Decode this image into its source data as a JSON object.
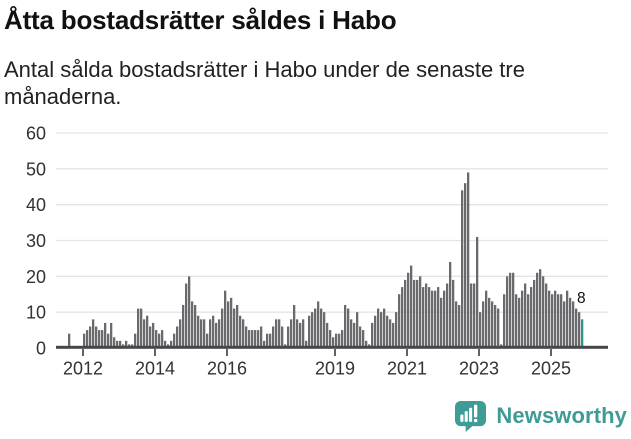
{
  "header": {
    "title": "Åtta bostadsrätter såldes i Habo",
    "subtitle": "Antal sålda bostadsrätter i Habo under de senaste tre månaderna."
  },
  "chart_data": {
    "type": "bar",
    "title": "Åtta bostadsrätter såldes i Habo",
    "subtitle": "Antal sålda bostadsrätter i Habo under de senaste tre månaderna.",
    "start_month": "2011-08",
    "end_month": "2025-11",
    "values": [
      4,
      0,
      0,
      0,
      0,
      4,
      5,
      6,
      8,
      6,
      5,
      5,
      7,
      4,
      7,
      3,
      2,
      2,
      1,
      2,
      1,
      1,
      4,
      11,
      11,
      8,
      9,
      6,
      7,
      5,
      4,
      5,
      2,
      1,
      2,
      4,
      6,
      8,
      12,
      18,
      20,
      13,
      12,
      9,
      8,
      8,
      4,
      8,
      9,
      7,
      8,
      11,
      16,
      13,
      14,
      11,
      12,
      9,
      8,
      6,
      5,
      5,
      5,
      5,
      6,
      2,
      4,
      4,
      6,
      8,
      8,
      6,
      1,
      6,
      8,
      12,
      8,
      7,
      8,
      2,
      9,
      10,
      11,
      13,
      11,
      10,
      7,
      5,
      3,
      4,
      4,
      5,
      12,
      11,
      8,
      7,
      10,
      6,
      5,
      2,
      1,
      7,
      9,
      11,
      10,
      11,
      9,
      8,
      7,
      10,
      15,
      17,
      19,
      21,
      23,
      19,
      19,
      20,
      17,
      18,
      17,
      16,
      16,
      17,
      14,
      16,
      18,
      24,
      19,
      13,
      12,
      44,
      46,
      49,
      18,
      18,
      31,
      10,
      13,
      16,
      14,
      13,
      12,
      11,
      1,
      15,
      20,
      21,
      21,
      15,
      14,
      16,
      18,
      15,
      17,
      19,
      21,
      22,
      20,
      18,
      16,
      15,
      16,
      15,
      15,
      13,
      16,
      14,
      13,
      11,
      10,
      8
    ],
    "highlight_last": true,
    "last_value_label": "8",
    "y_ticks": [
      0,
      10,
      20,
      30,
      40,
      50,
      60
    ],
    "ylim": [
      0,
      60
    ],
    "x_tick_years": [
      2012,
      2014,
      2016,
      2019,
      2021,
      2023,
      2025
    ],
    "grid": true,
    "legend": "none",
    "colors": {
      "bar": "#6a6a6e",
      "highlight": "#2e948e",
      "grid": "#e4e4e4",
      "axis": "#47474a",
      "text": "#333333"
    }
  },
  "footer": {
    "brand": "Newsworthy",
    "logo_icon": "bar-chart-speech-bubble-icon",
    "brand_color": "#3f9b96"
  }
}
